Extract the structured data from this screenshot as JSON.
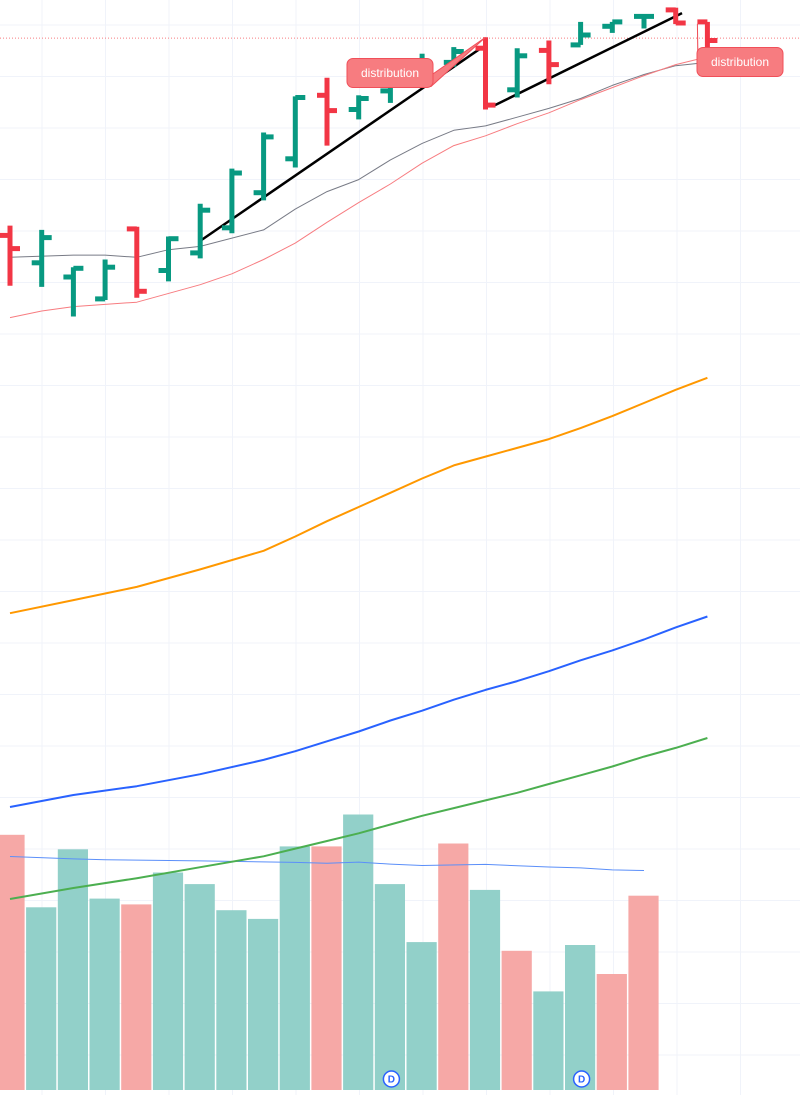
{
  "chart_data": [
    {
      "type": "ohlc",
      "ylim": [
        0,
        100
      ],
      "grid": true,
      "bars": [
        {
          "index": 0,
          "open": 78.5,
          "high": 79.4,
          "low": 73.9,
          "close": 77.3
        },
        {
          "index": 1,
          "open": 76.0,
          "high": 79.0,
          "low": 73.8,
          "close": 78.3
        },
        {
          "index": 2,
          "open": 74.7,
          "high": 75.6,
          "low": 71.1,
          "close": 75.5
        },
        {
          "index": 3,
          "open": 72.7,
          "high": 76.3,
          "low": 72.6,
          "close": 75.6
        },
        {
          "index": 4,
          "open": 79.1,
          "high": 79.3,
          "low": 72.8,
          "close": 73.4
        },
        {
          "index": 5,
          "open": 75.3,
          "high": 78.4,
          "low": 74.3,
          "close": 78.2
        },
        {
          "index": 6,
          "open": 76.9,
          "high": 81.4,
          "low": 76.4,
          "close": 80.8
        },
        {
          "index": 7,
          "open": 79.2,
          "high": 84.6,
          "low": 78.7,
          "close": 84.2
        },
        {
          "index": 8,
          "open": 82.4,
          "high": 87.9,
          "low": 81.7,
          "close": 87.5
        },
        {
          "index": 9,
          "open": 85.5,
          "high": 91.2,
          "low": 84.7,
          "close": 91.1
        },
        {
          "index": 10,
          "open": 91.3,
          "high": 92.9,
          "low": 86.7,
          "close": 89.9
        },
        {
          "index": 11,
          "open": 90.0,
          "high": 91.3,
          "low": 89.1,
          "close": 91.0
        },
        {
          "index": 12,
          "open": 91.7,
          "high": 93.1,
          "low": 90.6,
          "close": 92.6
        },
        {
          "index": 13,
          "open": 92.3,
          "high": 95.1,
          "low": 92.1,
          "close": 94.2
        },
        {
          "index": 14,
          "open": 94.3,
          "high": 95.7,
          "low": 93.9,
          "close": 95.3
        },
        {
          "index": 15,
          "open": 95.6,
          "high": 96.6,
          "low": 90.0,
          "close": 90.4
        },
        {
          "index": 16,
          "open": 91.8,
          "high": 95.6,
          "low": 91.1,
          "close": 94.9
        },
        {
          "index": 17,
          "open": 95.4,
          "high": 96.3,
          "low": 92.3,
          "close": 94.1
        },
        {
          "index": 18,
          "open": 95.9,
          "high": 98.0,
          "low": 95.9,
          "close": 96.8
        },
        {
          "index": 19,
          "open": 97.6,
          "high": 98.0,
          "low": 97.0,
          "close": 98.0
        },
        {
          "index": 20,
          "open": 98.5,
          "high": 98.6,
          "low": 97.4,
          "close": 98.5
        },
        {
          "index": 21,
          "open": 99.1,
          "high": 99.3,
          "low": 97.8,
          "close": 97.9
        },
        {
          "index": 22,
          "open": 98.0,
          "high": 98.0,
          "low": 95.2,
          "close": 96.3
        }
      ],
      "moving_averages": [
        {
          "color": "#787b86",
          "points": [
            [
              0,
              76.5
            ],
            [
              2,
              76.7
            ],
            [
              3,
              76.7
            ],
            [
              4,
              76.5
            ],
            [
              5,
              77.2
            ],
            [
              6,
              77.5
            ],
            [
              8,
              79.0
            ],
            [
              9,
              80.9
            ],
            [
              10,
              82.5
            ],
            [
              11,
              83.6
            ],
            [
              12,
              85.4
            ],
            [
              13,
              86.9
            ],
            [
              14,
              88.1
            ],
            [
              15,
              88.5
            ],
            [
              16,
              89.3
            ],
            [
              17,
              90.1
            ],
            [
              18,
              91.0
            ],
            [
              19,
              92.2
            ],
            [
              20,
              93.2
            ],
            [
              21,
              94.0
            ],
            [
              22,
              94.3
            ]
          ]
        },
        {
          "color": "#f77c80",
          "points": [
            [
              0,
              71.0
            ],
            [
              1,
              71.6
            ],
            [
              2,
              72.0
            ],
            [
              4,
              72.4
            ],
            [
              6,
              74.0
            ],
            [
              7,
              75.0
            ],
            [
              8,
              76.3
            ],
            [
              9,
              77.8
            ],
            [
              10,
              79.7
            ],
            [
              11,
              81.5
            ],
            [
              12,
              83.2
            ],
            [
              13,
              85.1
            ],
            [
              14,
              86.7
            ],
            [
              15,
              87.6
            ],
            [
              16,
              88.7
            ],
            [
              17,
              89.7
            ],
            [
              18,
              90.9
            ],
            [
              19,
              92.0
            ],
            [
              20,
              93.1
            ],
            [
              21,
              94.1
            ],
            [
              22,
              94.8
            ]
          ]
        },
        {
          "color": "#ff9800",
          "points": [
            [
              0,
              44.0
            ],
            [
              2,
              45.2
            ],
            [
              3,
              45.8
            ],
            [
              4,
              46.4
            ],
            [
              6,
              48.0
            ],
            [
              8,
              49.7
            ],
            [
              9,
              51.0
            ],
            [
              10,
              52.4
            ],
            [
              11,
              53.7
            ],
            [
              12,
              55.0
            ],
            [
              13,
              56.3
            ],
            [
              14,
              57.5
            ],
            [
              15,
              58.3
            ],
            [
              16,
              59.1
            ],
            [
              17,
              59.9
            ],
            [
              18,
              60.9
            ],
            [
              19,
              62.0
            ],
            [
              20,
              63.2
            ],
            [
              21,
              64.4
            ],
            [
              22,
              65.5
            ]
          ]
        },
        {
          "color": "#2962ff",
          "points": [
            [
              0,
              26.3
            ],
            [
              2,
              27.4
            ],
            [
              4,
              28.2
            ],
            [
              6,
              29.3
            ],
            [
              8,
              30.6
            ],
            [
              9,
              31.4
            ],
            [
              10,
              32.3
            ],
            [
              11,
              33.2
            ],
            [
              12,
              34.2
            ],
            [
              13,
              35.1
            ],
            [
              14,
              36.1
            ],
            [
              15,
              37.0
            ],
            [
              16,
              37.8
            ],
            [
              17,
              38.7
            ],
            [
              18,
              39.7
            ],
            [
              19,
              40.6
            ],
            [
              20,
              41.6
            ],
            [
              21,
              42.7
            ],
            [
              22,
              43.7
            ]
          ]
        },
        {
          "color": "#4caf50",
          "points": [
            [
              0,
              17.9
            ],
            [
              2,
              18.9
            ],
            [
              4,
              19.8
            ],
            [
              6,
              20.8
            ],
            [
              8,
              21.8
            ],
            [
              9,
              22.5
            ],
            [
              10,
              23.2
            ],
            [
              11,
              23.9
            ],
            [
              12,
              24.7
            ],
            [
              13,
              25.5
            ],
            [
              14,
              26.2
            ],
            [
              15,
              26.9
            ],
            [
              16,
              27.6
            ],
            [
              17,
              28.4
            ],
            [
              18,
              29.2
            ],
            [
              19,
              30.0
            ],
            [
              20,
              30.9
            ],
            [
              21,
              31.7
            ],
            [
              22,
              32.6
            ]
          ]
        }
      ],
      "trendlines": [
        {
          "color": "#000000",
          "from": [
            6,
            78.0
          ],
          "to": [
            14.8,
            95.5
          ]
        },
        {
          "color": "#000000",
          "from": [
            15.3,
            90.4
          ],
          "to": [
            21.2,
            98.8
          ]
        }
      ],
      "annotations": [
        {
          "text": "distribution",
          "bar_index": 15,
          "anchor": "high"
        },
        {
          "text": "distribution",
          "bar_index": 22,
          "anchor": "high"
        }
      ]
    },
    {
      "type": "bar",
      "title": "",
      "ylim": [
        0,
        100
      ],
      "colors": {
        "up": "#92d0c9",
        "down": "#f6a8a6"
      },
      "values": [
        88,
        63,
        83,
        66,
        64,
        75,
        71,
        62,
        59,
        84,
        84,
        95,
        71,
        51,
        85,
        69,
        48,
        34,
        50,
        40,
        67
      ],
      "direction": [
        "down",
        "up",
        "up",
        "up",
        "down",
        "up",
        "up",
        "up",
        "up",
        "up",
        "down",
        "up",
        "up",
        "up",
        "down",
        "up",
        "down",
        "up",
        "up",
        "down",
        "down"
      ],
      "average_line": {
        "color": "#5b8ff9",
        "points": [
          [
            0,
            80.5
          ],
          [
            2,
            79.7
          ],
          [
            3,
            79.4
          ],
          [
            6,
            79.0
          ],
          [
            9,
            78.5
          ],
          [
            10,
            78.2
          ],
          [
            11,
            78.6
          ],
          [
            12,
            77.9
          ],
          [
            13,
            77.4
          ],
          [
            15,
            77.8
          ],
          [
            17,
            76.9
          ],
          [
            18,
            76.6
          ],
          [
            19,
            75.9
          ],
          [
            20,
            75.7
          ]
        ]
      },
      "dividend_markers": [
        {
          "bar_index": 12,
          "label": "D"
        },
        {
          "bar_index": 18,
          "label": "D"
        }
      ]
    }
  ],
  "colors": {
    "up": "#089981",
    "down": "#f23645",
    "callout": "#f77c80",
    "callout_border": "#f04f59",
    "grid": "#f0f3fa",
    "dotted_line": "#f77c80",
    "dividend": "#2962ff"
  }
}
